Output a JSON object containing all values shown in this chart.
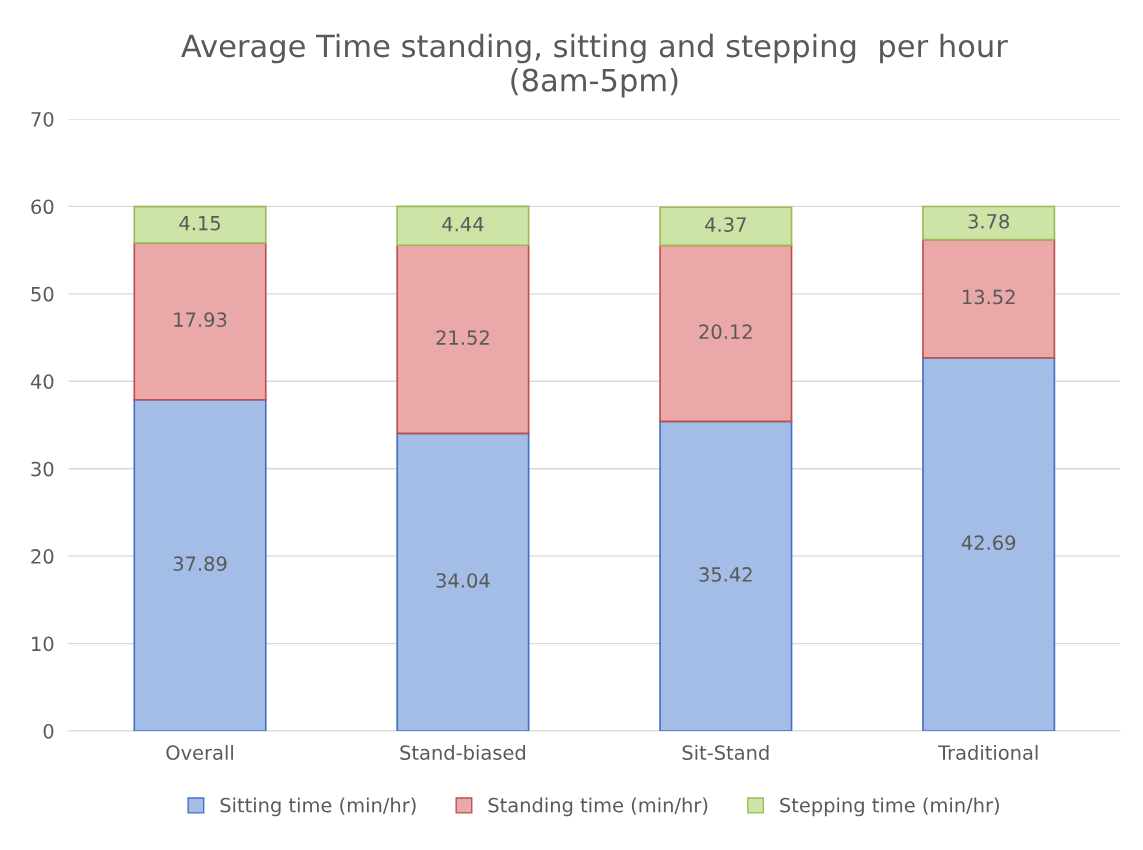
{
  "chart_data": {
    "type": "bar",
    "title": "Average Time standing, sitting and stepping  per hour\n(8am-5pm)",
    "categories": [
      "Overall",
      "Stand-biased",
      "Sit-Stand",
      "Traditional"
    ],
    "series": [
      {
        "name": "Sitting time (min/hr)",
        "color": "#a3bde6",
        "values": [
          37.89,
          34.04,
          35.42,
          42.69
        ]
      },
      {
        "name": "Standing time (min/hr)",
        "color": "#eba8a8",
        "values": [
          17.93,
          21.52,
          20.12,
          13.52
        ]
      },
      {
        "name": "Stepping time (min/hr)",
        "color": "#cde4a6",
        "values": [
          4.15,
          4.44,
          4.37,
          3.78
        ]
      }
    ],
    "stacked": true,
    "data_labels": true,
    "ylim": [
      0,
      70
    ],
    "yticks": [
      0,
      10,
      20,
      30,
      40,
      50,
      60,
      70
    ],
    "grid": "y",
    "legend": "bottom"
  }
}
